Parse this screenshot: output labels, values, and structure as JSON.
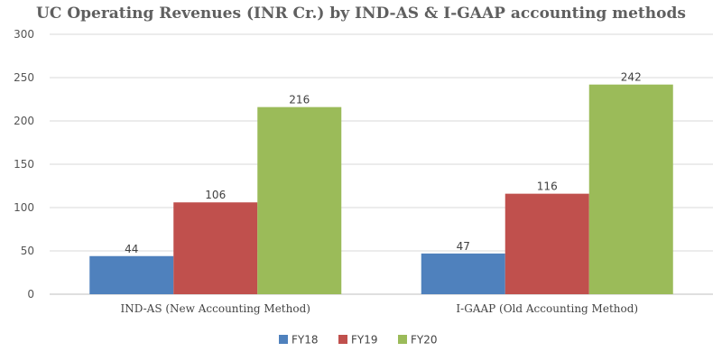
{
  "chart_data": {
    "type": "bar",
    "title": "UC Operating Revenues (INR Cr.) by IND-AS & I-GAAP accounting methods",
    "xlabel": "",
    "ylabel": "",
    "categories": [
      "IND-AS (New Accounting Method)",
      "I-GAAP (Old Accounting Method)"
    ],
    "series": [
      {
        "name": "FY18",
        "values": [
          44,
          47
        ],
        "color": "#4f81bd"
      },
      {
        "name": "FY19",
        "values": [
          106,
          116
        ],
        "color": "#c0504d"
      },
      {
        "name": "FY20",
        "values": [
          216,
          242
        ],
        "color": "#9bbb59"
      }
    ],
    "ylim": [
      0,
      300
    ],
    "yticks": [
      0,
      50,
      100,
      150,
      200,
      250,
      300
    ],
    "grid": true,
    "legend": "bottom-center"
  }
}
